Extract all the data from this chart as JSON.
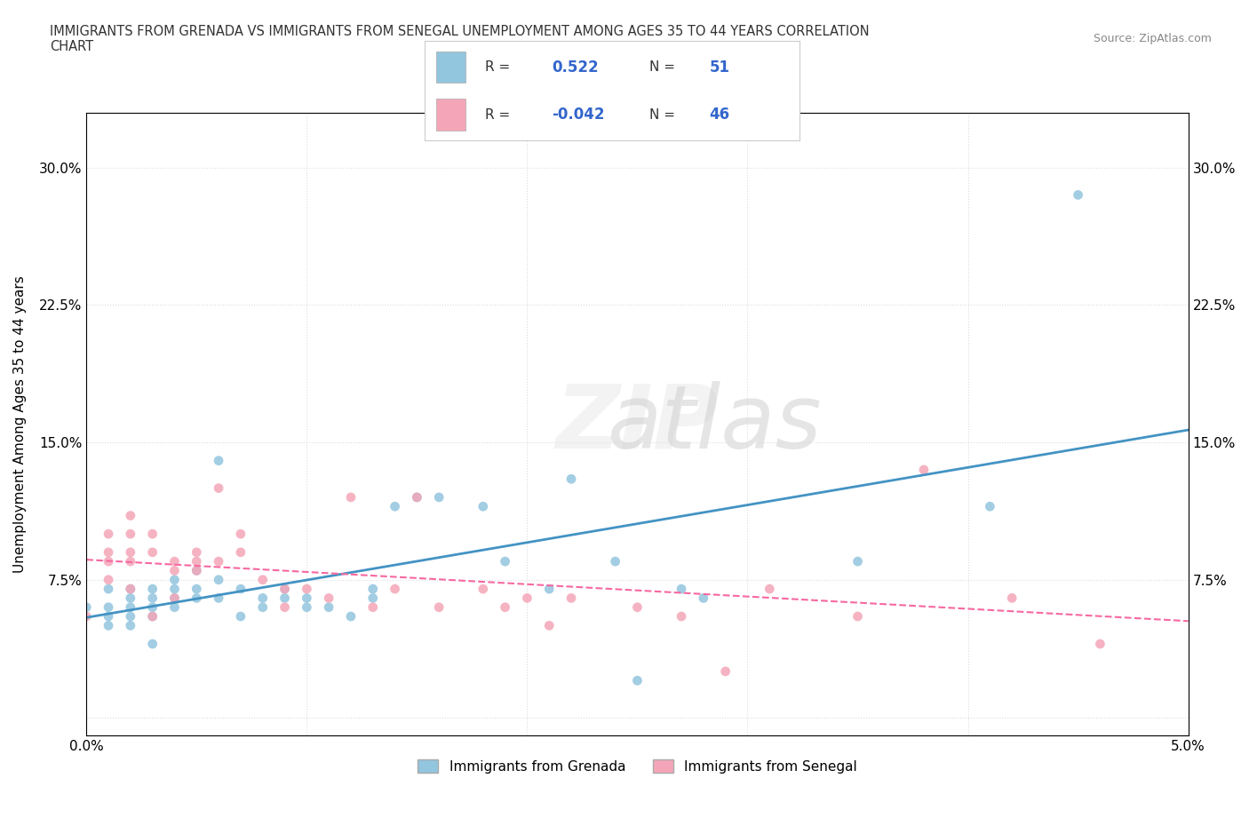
{
  "title": "IMMIGRANTS FROM GRENADA VS IMMIGRANTS FROM SENEGAL UNEMPLOYMENT AMONG AGES 35 TO 44 YEARS CORRELATION\nCHART",
  "source": "Source: ZipAtlas.com",
  "xlabel": "",
  "ylabel": "Unemployment Among Ages 35 to 44 years",
  "xlim": [
    0.0,
    0.05
  ],
  "ylim": [
    -0.01,
    0.33
  ],
  "xticks": [
    0.0,
    0.01,
    0.02,
    0.03,
    0.04,
    0.05
  ],
  "xtick_labels": [
    "0.0%",
    "",
    "",
    "",
    "",
    "5.0%"
  ],
  "yticks": [
    0.0,
    0.075,
    0.15,
    0.225,
    0.3
  ],
  "ytick_labels": [
    "",
    "7.5%",
    "15.0%",
    "22.5%",
    "30.0%"
  ],
  "watermark": "ZIPatlas",
  "grenada_R": 0.522,
  "grenada_N": 51,
  "senegal_R": -0.042,
  "senegal_N": 46,
  "grenada_color": "#92C5DE",
  "senegal_color": "#F4A6B8",
  "grenada_line_color": "#4393C3",
  "senegal_line_color": "#F768A1",
  "grenada_scatter_x": [
    0.0,
    0.001,
    0.001,
    0.001,
    0.001,
    0.002,
    0.002,
    0.002,
    0.002,
    0.002,
    0.003,
    0.003,
    0.003,
    0.003,
    0.003,
    0.004,
    0.004,
    0.004,
    0.004,
    0.005,
    0.005,
    0.005,
    0.006,
    0.006,
    0.006,
    0.007,
    0.007,
    0.008,
    0.008,
    0.009,
    0.009,
    0.01,
    0.01,
    0.011,
    0.012,
    0.013,
    0.013,
    0.014,
    0.015,
    0.016,
    0.018,
    0.019,
    0.021,
    0.022,
    0.024,
    0.025,
    0.027,
    0.028,
    0.035,
    0.041,
    0.045
  ],
  "grenada_scatter_y": [
    0.06,
    0.07,
    0.055,
    0.06,
    0.05,
    0.065,
    0.055,
    0.06,
    0.07,
    0.05,
    0.07,
    0.065,
    0.055,
    0.06,
    0.04,
    0.06,
    0.075,
    0.065,
    0.07,
    0.08,
    0.065,
    0.07,
    0.075,
    0.065,
    0.14,
    0.055,
    0.07,
    0.065,
    0.06,
    0.065,
    0.07,
    0.065,
    0.06,
    0.06,
    0.055,
    0.065,
    0.07,
    0.115,
    0.12,
    0.12,
    0.115,
    0.085,
    0.07,
    0.13,
    0.085,
    0.02,
    0.07,
    0.065,
    0.085,
    0.115,
    0.285
  ],
  "senegal_scatter_x": [
    0.0,
    0.001,
    0.001,
    0.001,
    0.001,
    0.002,
    0.002,
    0.002,
    0.002,
    0.002,
    0.003,
    0.003,
    0.003,
    0.004,
    0.004,
    0.004,
    0.005,
    0.005,
    0.005,
    0.006,
    0.006,
    0.007,
    0.007,
    0.008,
    0.009,
    0.009,
    0.01,
    0.011,
    0.012,
    0.013,
    0.014,
    0.015,
    0.016,
    0.018,
    0.019,
    0.02,
    0.021,
    0.022,
    0.025,
    0.027,
    0.029,
    0.031,
    0.035,
    0.038,
    0.042,
    0.046
  ],
  "senegal_scatter_y": [
    0.055,
    0.075,
    0.085,
    0.09,
    0.1,
    0.07,
    0.085,
    0.09,
    0.1,
    0.11,
    0.09,
    0.1,
    0.055,
    0.065,
    0.085,
    0.08,
    0.085,
    0.09,
    0.08,
    0.085,
    0.125,
    0.09,
    0.1,
    0.075,
    0.06,
    0.07,
    0.07,
    0.065,
    0.12,
    0.06,
    0.07,
    0.12,
    0.06,
    0.07,
    0.06,
    0.065,
    0.05,
    0.065,
    0.06,
    0.055,
    0.025,
    0.07,
    0.055,
    0.135,
    0.065,
    0.04
  ],
  "background_color": "#ffffff",
  "grid_color": "#dddddd"
}
